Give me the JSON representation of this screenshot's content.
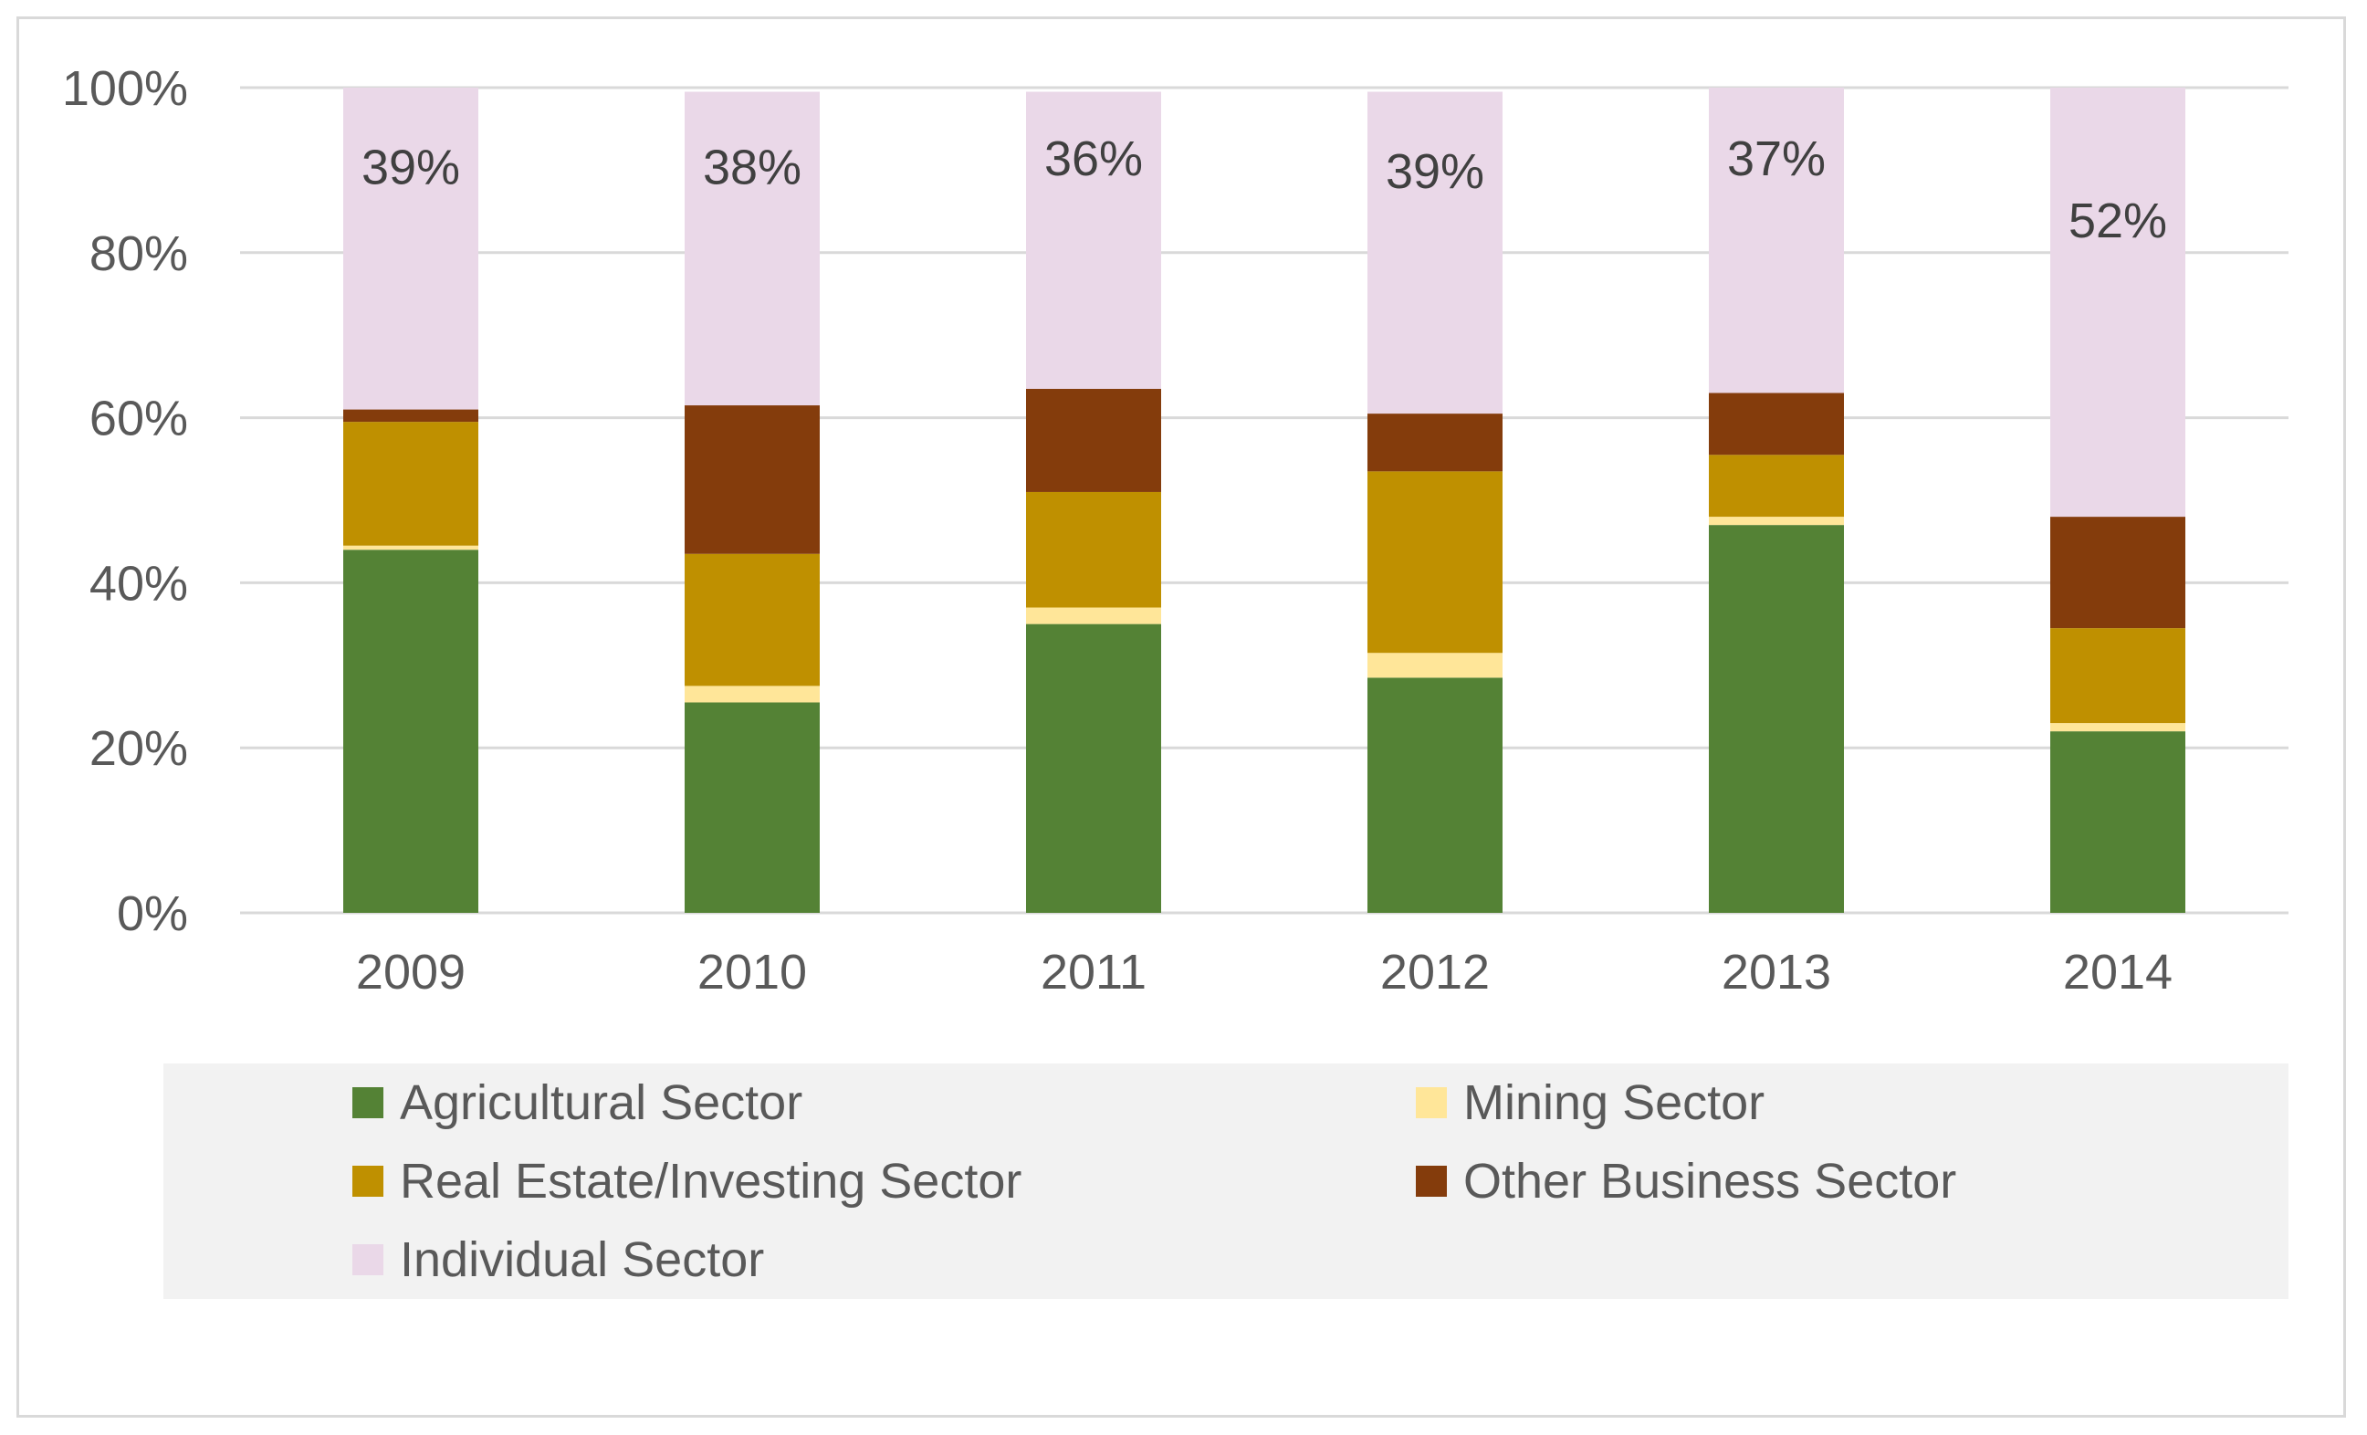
{
  "chart_data": {
    "type": "bar",
    "stacked": true,
    "title": "",
    "xlabel": "",
    "ylabel": "",
    "ylim": [
      0,
      100
    ],
    "yticks": [
      "0%",
      "20%",
      "40%",
      "60%",
      "80%",
      "100%"
    ],
    "categories": [
      "2009",
      "2010",
      "2011",
      "2012",
      "2013",
      "2014"
    ],
    "series": [
      {
        "name": "Agricultural Sector",
        "color": "#548235",
        "values": [
          44,
          25.5,
          35,
          28.5,
          47,
          22
        ]
      },
      {
        "name": "Mining Sector",
        "color": "#ffe699",
        "values": [
          0.5,
          2,
          2,
          3,
          1,
          1
        ]
      },
      {
        "name": "Real Estate/Investing Sector",
        "color": "#bf9000",
        "values": [
          15,
          16,
          14,
          22,
          7.5,
          11.5
        ]
      },
      {
        "name": "Other Business Sector",
        "color": "#843c0c",
        "values": [
          1.5,
          18,
          12.5,
          7,
          7.5,
          13.5
        ]
      },
      {
        "name": "Individual Sector",
        "color": "#ead8e8",
        "values": [
          39,
          38,
          36,
          39,
          37,
          52
        ]
      }
    ],
    "data_labels": [
      "39%",
      "38%",
      "36%",
      "39%",
      "37%",
      "52%"
    ],
    "legend_position": "bottom",
    "grid": true
  }
}
